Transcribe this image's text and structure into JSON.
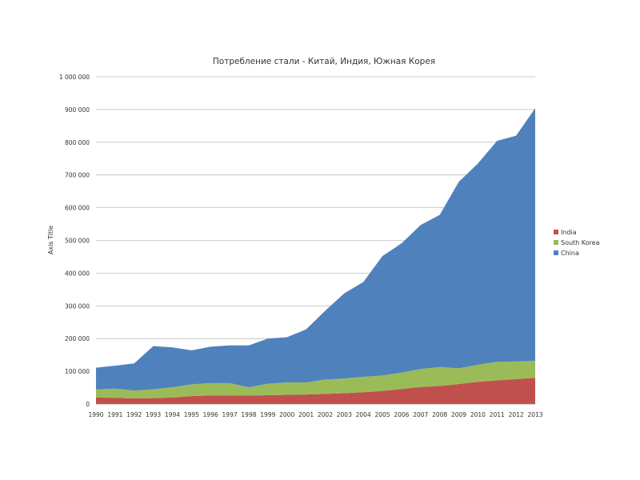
{
  "chart_data": {
    "type": "area",
    "stacked": true,
    "title": "Потребление стали   - Китай, Индия, Южная Корея",
    "xlabel": "",
    "ylabel": "Axis Title",
    "ylim": [
      0,
      1000000
    ],
    "yticks": [
      0,
      100000,
      200000,
      300000,
      400000,
      500000,
      600000,
      700000,
      800000,
      900000,
      1000000
    ],
    "ytick_labels": [
      "0",
      "100 000",
      "200 000",
      "300 000",
      "400 000",
      "500 000",
      "600 000",
      "700 000",
      "800 000",
      "900 000",
      "1 000 000"
    ],
    "grid": true,
    "legend_position": "right",
    "categories": [
      "1990",
      "1991",
      "1992",
      "1993",
      "1994",
      "1995",
      "1996",
      "1997",
      "1998",
      "1999",
      "2000",
      "2001",
      "2002",
      "2003",
      "2004",
      "2005",
      "2006",
      "2007",
      "2008",
      "2009",
      "2010",
      "2011",
      "2012",
      "2013"
    ],
    "series": [
      {
        "name": "India",
        "color": "#c0504d",
        "values": [
          20000,
          19000,
          17000,
          18000,
          20000,
          24000,
          26000,
          26000,
          26000,
          27000,
          28000,
          29000,
          31000,
          33000,
          36000,
          40000,
          46000,
          52000,
          55000,
          61000,
          68000,
          72000,
          76000,
          80000
        ]
      },
      {
        "name": "South Korea",
        "color": "#9bbb59",
        "values": [
          25000,
          28000,
          24000,
          27000,
          31000,
          36000,
          38000,
          38000,
          25000,
          35000,
          38000,
          37000,
          44000,
          45000,
          47000,
          47000,
          50000,
          55000,
          58000,
          48000,
          52000,
          57000,
          54000,
          52000
        ]
      },
      {
        "name": "China",
        "color": "#4f81bd",
        "values": [
          66000,
          70000,
          83000,
          132000,
          122000,
          104000,
          111000,
          115000,
          128000,
          138000,
          138000,
          162000,
          210000,
          260000,
          290000,
          365000,
          395000,
          440000,
          465000,
          570000,
          615000,
          675000,
          690000,
          772000
        ]
      }
    ]
  }
}
